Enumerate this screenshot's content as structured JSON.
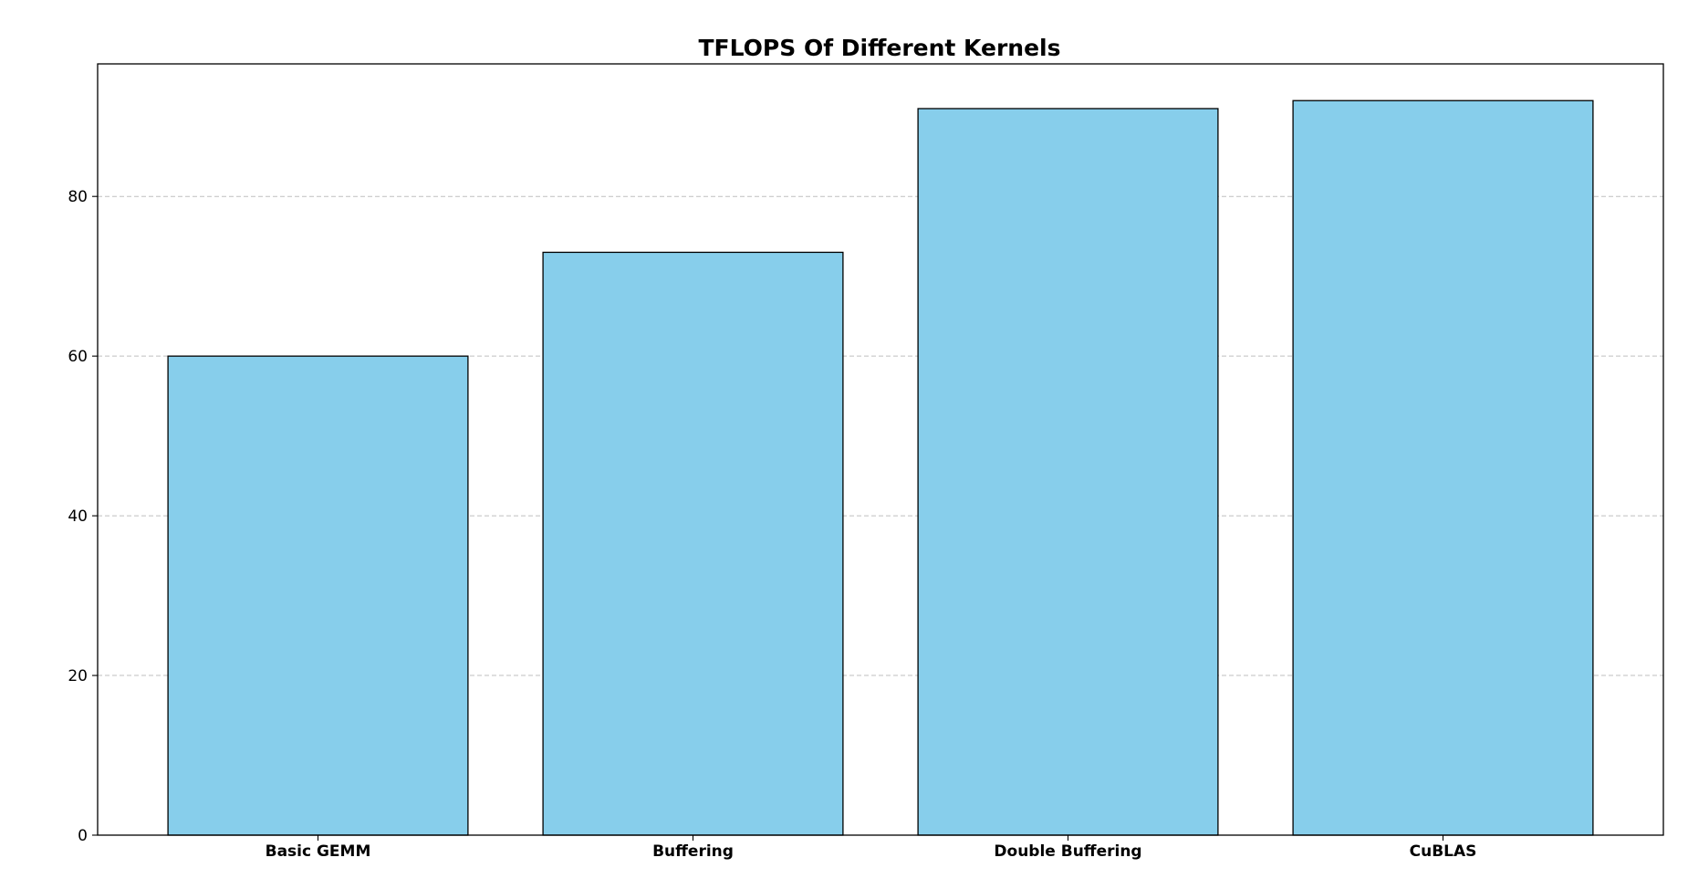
{
  "chart_data": {
    "type": "bar",
    "title": "TFLOPS Of Different Kernels",
    "xlabel": "",
    "ylabel": "",
    "categories": [
      "Basic GEMM",
      "Buffering",
      "Double Buffering",
      "CuBLAS"
    ],
    "values": [
      60,
      73,
      91,
      92
    ],
    "ylim": [
      0,
      96.6
    ],
    "yticks": [
      0,
      20,
      40,
      60,
      80
    ],
    "ytick_labels": [
      "0",
      "20",
      "40",
      "60",
      "80"
    ],
    "grid": "y-dashed",
    "legend": "none",
    "colors": {
      "bar_fill": "#87CEEB",
      "bar_edge": "#000000",
      "grid": "#b0b0b0"
    }
  }
}
